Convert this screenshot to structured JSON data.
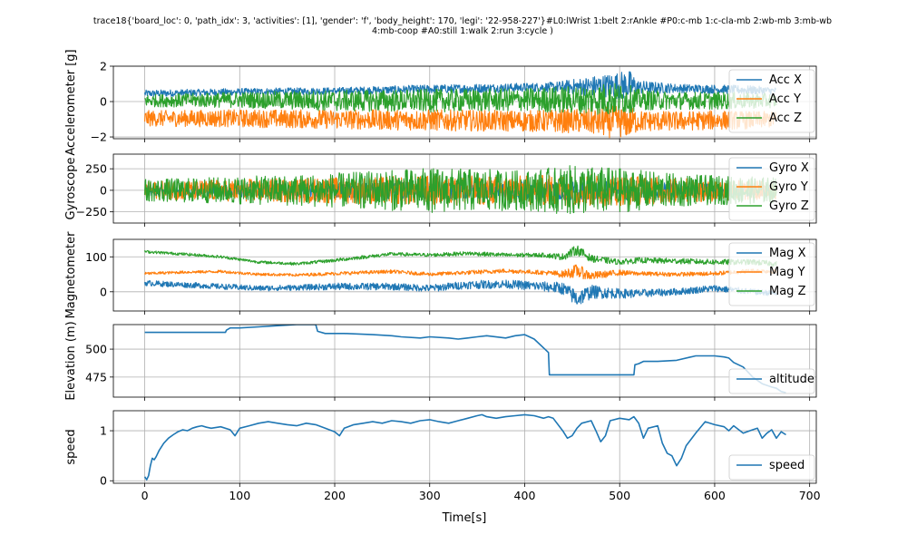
{
  "figure": {
    "title_line1": "trace18{'board_loc': 0, 'path_idx': 3, 'activities': [1], 'gender': 'f', 'body_height': 170, 'legi': '22-958-227'}#L0:lWrist 1:belt 2:rAnkle #P0:c-mb 1:c-cla-mb 2:wb-mb 3:mb-wb",
    "title_line2": "4:mb-coop #A0:still 1:walk 2:run 3:cycle )",
    "xlabel": "Time[s]",
    "x_ticks": [
      0,
      100,
      200,
      300,
      400,
      500,
      600,
      700
    ],
    "xlim": [
      -33,
      707
    ]
  },
  "chart_data": [
    {
      "type": "line",
      "id": "acc",
      "ylabel": "Accelerometer [g]",
      "ylim": [
        -2.1,
        2.0
      ],
      "y_ticks": [
        -2,
        0,
        2
      ],
      "grid": true,
      "legend": "right",
      "x_range": [
        0,
        665
      ],
      "series": [
        {
          "name": "Acc X",
          "color": "#1f77b4",
          "x": [
            0,
            100,
            200,
            300,
            400,
            430,
            460,
            490,
            510,
            520,
            560,
            600,
            640,
            665
          ],
          "center": [
            0.45,
            0.55,
            0.6,
            0.7,
            0.8,
            0.8,
            0.85,
            0.9,
            0.9,
            0.8,
            0.75,
            0.7,
            0.65,
            0.6
          ],
          "amp": [
            0.2,
            0.2,
            0.2,
            0.25,
            0.25,
            0.3,
            0.5,
            0.7,
            0.9,
            0.4,
            0.25,
            0.25,
            0.25,
            0.2
          ]
        },
        {
          "name": "Acc Y",
          "color": "#ff7f0e",
          "x": [
            0,
            100,
            200,
            300,
            400,
            430,
            460,
            490,
            510,
            520,
            560,
            600,
            640,
            665
          ],
          "center": [
            -0.95,
            -0.95,
            -1.0,
            -1.05,
            -1.1,
            -1.1,
            -1.1,
            -1.15,
            -1.15,
            -1.1,
            -1.1,
            -1.05,
            -1.05,
            -1.0
          ],
          "amp": [
            0.45,
            0.5,
            0.55,
            0.6,
            0.6,
            0.65,
            0.7,
            0.9,
            0.9,
            0.6,
            0.55,
            0.55,
            0.5,
            0.45
          ]
        },
        {
          "name": "Acc Z",
          "color": "#2ca02c",
          "x": [
            0,
            100,
            200,
            300,
            400,
            430,
            460,
            490,
            510,
            520,
            560,
            600,
            640,
            665
          ],
          "center": [
            0.05,
            0.1,
            0.05,
            0.05,
            0.1,
            0.1,
            0.1,
            0.15,
            0.15,
            0.1,
            0.05,
            0.05,
            0.05,
            0.05
          ],
          "amp": [
            0.35,
            0.45,
            0.6,
            0.65,
            0.65,
            0.75,
            0.8,
            0.95,
            0.8,
            0.6,
            0.5,
            0.5,
            0.45,
            0.4
          ]
        }
      ]
    },
    {
      "type": "line",
      "id": "gyro",
      "ylabel": "Gyroscope",
      "ylim": [
        -380,
        420
      ],
      "y_ticks": [
        -250,
        0,
        250
      ],
      "grid": true,
      "legend": "right",
      "x_range": [
        0,
        665
      ],
      "series": [
        {
          "name": "Gyro X",
          "color": "#1f77b4",
          "x": [
            0,
            100,
            200,
            300,
            400,
            450,
            500,
            550,
            600,
            665
          ],
          "center": [
            0,
            0,
            0,
            0,
            0,
            0,
            0,
            0,
            0,
            0
          ],
          "amp": [
            60,
            80,
            90,
            100,
            100,
            110,
            110,
            90,
            80,
            70
          ]
        },
        {
          "name": "Gyro Y",
          "color": "#ff7f0e",
          "x": [
            0,
            100,
            200,
            300,
            400,
            450,
            500,
            550,
            600,
            665
          ],
          "center": [
            0,
            0,
            0,
            0,
            0,
            0,
            0,
            0,
            0,
            0
          ],
          "amp": [
            100,
            130,
            150,
            170,
            170,
            190,
            180,
            150,
            130,
            110
          ]
        },
        {
          "name": "Gyro Z",
          "color": "#2ca02c",
          "x": [
            0,
            100,
            200,
            300,
            400,
            450,
            500,
            550,
            600,
            665
          ],
          "center": [
            0,
            0,
            0,
            0,
            0,
            0,
            0,
            0,
            0,
            0
          ],
          "amp": [
            130,
            160,
            200,
            260,
            230,
            290,
            260,
            200,
            170,
            150
          ]
        }
      ]
    },
    {
      "type": "line",
      "id": "mag",
      "ylabel": "Magnetometer",
      "ylim": [
        -55,
        150
      ],
      "y_ticks": [
        0,
        100
      ],
      "grid": true,
      "legend": "right",
      "x_range": [
        0,
        665
      ],
      "series": [
        {
          "name": "Mag X",
          "color": "#1f77b4",
          "x": [
            0,
            40,
            80,
            120,
            160,
            200,
            260,
            300,
            340,
            380,
            420,
            440,
            455,
            470,
            500,
            520,
            560,
            600,
            640,
            665
          ],
          "center": [
            25,
            20,
            15,
            10,
            12,
            15,
            15,
            10,
            20,
            22,
            15,
            10,
            -20,
            0,
            -5,
            -5,
            0,
            10,
            0,
            -5
          ],
          "amp": [
            8,
            8,
            8,
            8,
            8,
            10,
            10,
            10,
            12,
            12,
            14,
            18,
            25,
            20,
            14,
            12,
            10,
            10,
            8,
            8
          ]
        },
        {
          "name": "Mag Y",
          "color": "#ff7f0e",
          "x": [
            0,
            40,
            80,
            120,
            160,
            200,
            260,
            300,
            340,
            380,
            420,
            440,
            455,
            470,
            500,
            520,
            560,
            600,
            640,
            665
          ],
          "center": [
            52,
            56,
            58,
            50,
            48,
            52,
            58,
            50,
            55,
            60,
            55,
            50,
            60,
            45,
            55,
            52,
            50,
            52,
            60,
            58
          ],
          "amp": [
            4,
            4,
            4,
            4,
            4,
            5,
            5,
            5,
            6,
            6,
            6,
            10,
            20,
            12,
            8,
            6,
            6,
            6,
            6,
            6
          ]
        },
        {
          "name": "Mag Z",
          "color": "#2ca02c",
          "x": [
            0,
            40,
            80,
            120,
            160,
            200,
            260,
            300,
            340,
            380,
            420,
            440,
            455,
            470,
            500,
            520,
            560,
            600,
            640,
            665
          ],
          "center": [
            115,
            108,
            100,
            85,
            80,
            90,
            108,
            105,
            110,
            105,
            105,
            100,
            120,
            95,
            85,
            90,
            88,
            85,
            85,
            80
          ],
          "amp": [
            4,
            4,
            4,
            4,
            4,
            5,
            5,
            5,
            6,
            6,
            6,
            10,
            15,
            10,
            8,
            8,
            8,
            8,
            8,
            8
          ]
        }
      ]
    },
    {
      "type": "line",
      "id": "elevation",
      "ylabel": "Elevation (m)",
      "ylim": [
        457,
        522
      ],
      "y_ticks": [
        475,
        500
      ],
      "grid": true,
      "legend": "lower right",
      "series": [
        {
          "name": "altitude",
          "color": "#1f77b4",
          "x": [
            0,
            85,
            86,
            90,
            100,
            120,
            140,
            160,
            175,
            180,
            182,
            190,
            210,
            240,
            260,
            270,
            290,
            300,
            320,
            330,
            340,
            350,
            360,
            380,
            390,
            400,
            405,
            410,
            425,
            426,
            460,
            515,
            516,
            520,
            525,
            540,
            560,
            575,
            580,
            600,
            610,
            615,
            620,
            630,
            640,
            650,
            660,
            665,
            670,
            675
          ],
          "y": [
            515,
            515,
            517,
            519,
            519,
            520,
            521,
            522,
            522,
            522,
            516,
            514,
            514,
            513,
            512,
            511,
            510,
            511,
            510,
            509,
            510,
            511,
            512,
            510,
            512,
            513,
            511,
            509,
            497,
            477,
            477,
            477,
            486,
            487,
            489,
            489,
            490,
            493,
            494,
            494,
            493,
            492,
            488,
            484,
            475,
            469,
            466,
            465,
            462,
            461
          ]
        }
      ]
    },
    {
      "type": "line",
      "id": "speed",
      "ylabel": "speed",
      "ylim": [
        -0.05,
        1.4
      ],
      "y_ticks": [
        0,
        1
      ],
      "grid": true,
      "legend": "lower right",
      "series": [
        {
          "name": "speed",
          "color": "#1f77b4",
          "x": [
            0,
            2,
            4,
            6,
            8,
            10,
            12,
            15,
            20,
            25,
            30,
            35,
            40,
            45,
            50,
            55,
            60,
            65,
            70,
            80,
            90,
            95,
            100,
            110,
            120,
            130,
            140,
            150,
            160,
            170,
            180,
            190,
            200,
            205,
            210,
            220,
            230,
            240,
            250,
            260,
            270,
            280,
            290,
            300,
            310,
            320,
            330,
            340,
            350,
            355,
            360,
            370,
            380,
            390,
            400,
            410,
            420,
            425,
            430,
            440,
            445,
            450,
            455,
            460,
            470,
            475,
            480,
            485,
            490,
            500,
            510,
            515,
            520,
            525,
            530,
            540,
            545,
            550,
            555,
            560,
            565,
            570,
            580,
            590,
            600,
            610,
            615,
            620,
            630,
            640,
            645,
            650,
            655,
            660,
            665,
            670,
            675
          ],
          "y": [
            0.08,
            0.02,
            0.1,
            0.3,
            0.45,
            0.42,
            0.48,
            0.6,
            0.75,
            0.85,
            0.92,
            0.98,
            1.02,
            1.0,
            1.05,
            1.08,
            1.1,
            1.07,
            1.05,
            1.08,
            1.02,
            0.9,
            1.05,
            1.1,
            1.15,
            1.18,
            1.15,
            1.12,
            1.1,
            1.15,
            1.12,
            1.05,
            0.98,
            0.9,
            1.05,
            1.12,
            1.15,
            1.18,
            1.15,
            1.2,
            1.18,
            1.15,
            1.2,
            1.22,
            1.18,
            1.15,
            1.2,
            1.25,
            1.3,
            1.32,
            1.28,
            1.25,
            1.28,
            1.3,
            1.32,
            1.3,
            1.25,
            1.28,
            1.25,
            1.0,
            0.85,
            0.9,
            1.05,
            1.15,
            1.2,
            1.0,
            0.78,
            0.9,
            1.2,
            1.25,
            1.22,
            1.28,
            1.15,
            0.85,
            1.05,
            1.1,
            0.75,
            0.55,
            0.5,
            0.3,
            0.45,
            0.7,
            0.95,
            1.18,
            1.12,
            1.08,
            1.0,
            1.1,
            0.95,
            1.02,
            1.05,
            0.85,
            0.95,
            1.02,
            0.85,
            0.98,
            0.92
          ]
        }
      ]
    }
  ]
}
